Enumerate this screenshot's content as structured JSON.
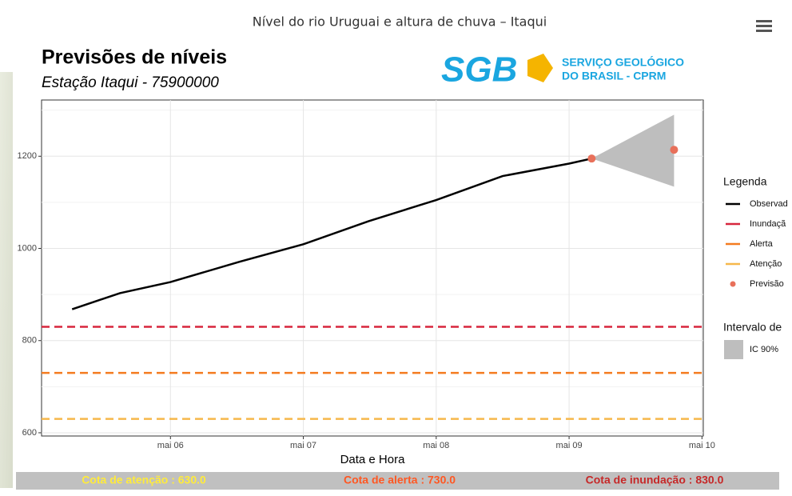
{
  "header": {
    "title": "Nível do rio Uruguai e altura de chuva – Itaqui"
  },
  "chart_data": {
    "type": "line",
    "title": "Previsões de níveis",
    "subtitle": "Estação Itaqui - 75900000",
    "logo": {
      "mark": "SGB",
      "line1": "SERVIÇO GEOLÓGICO",
      "line2": "DO BRASIL - CPRM"
    },
    "xlabel": "Data e Hora",
    "xlim": [
      5.03,
      10.01
    ],
    "xticks": [
      {
        "value": 6,
        "label": "mai 06"
      },
      {
        "value": 7,
        "label": "mai 07"
      },
      {
        "value": 8,
        "label": "mai 08"
      },
      {
        "value": 9,
        "label": "mai 09"
      },
      {
        "value": 10,
        "label": "mai 10"
      }
    ],
    "ylim": [
      593,
      1322
    ],
    "yticks": [
      600,
      800,
      1000,
      1200
    ],
    "yminor": [
      700,
      900,
      1100,
      1300
    ],
    "grid": true,
    "legend_title": "Legenda",
    "series": [
      {
        "name": "Observad",
        "color": "#000000",
        "x": [
          5.26,
          5.62,
          6.0,
          6.52,
          7.0,
          7.49,
          8.0,
          8.5,
          9.0,
          9.17
        ],
        "values": [
          868,
          903,
          927,
          971,
          1009,
          1059,
          1105,
          1157,
          1184,
          1195
        ]
      },
      {
        "name": "Inundaçã",
        "color": "#d7263d",
        "value": 830
      },
      {
        "name": "Alerta",
        "color": "#f47b20",
        "value": 730
      },
      {
        "name": "Atenção",
        "color": "#f6b84b",
        "value": 630
      },
      {
        "name": "Previsão",
        "color": "#e8705a",
        "x": [
          9.17,
          9.79
        ],
        "values": [
          1195,
          1214
        ],
        "points": true
      }
    ],
    "interval": {
      "title": "Intervalo de",
      "name": "IC 90%",
      "color": "#bebebe",
      "x": [
        9.17,
        9.79
      ],
      "lower": [
        1195,
        1134
      ],
      "upper": [
        1195,
        1290
      ]
    }
  },
  "footer": {
    "attention": "Cota de atenção : 630.0",
    "alert": "Cota de alerta : 730.0",
    "flood": "Cota de inundação : 830.0"
  }
}
